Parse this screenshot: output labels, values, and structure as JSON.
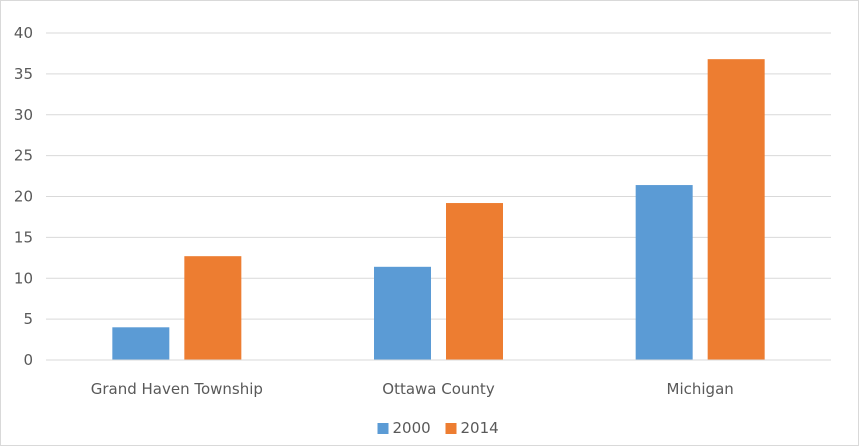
{
  "chart_data": {
    "type": "bar",
    "title": "",
    "xlabel": "",
    "ylabel": "",
    "categories": [
      "Grand Haven Township",
      "Ottawa County",
      "Michigan"
    ],
    "series": [
      {
        "name": "2000",
        "values": [
          4.0,
          11.4,
          21.4
        ],
        "color": "#5b9bd5"
      },
      {
        "name": "2014",
        "values": [
          12.7,
          19.2,
          36.8
        ],
        "color": "#ed7d31"
      }
    ],
    "ylim": [
      0,
      40
    ],
    "yticks": [
      "0",
      "5",
      "10",
      "15",
      "20",
      "25",
      "30",
      "35",
      "40"
    ],
    "grid": true,
    "legend_position": "bottom",
    "gridline_color": "#d9d9d9"
  }
}
